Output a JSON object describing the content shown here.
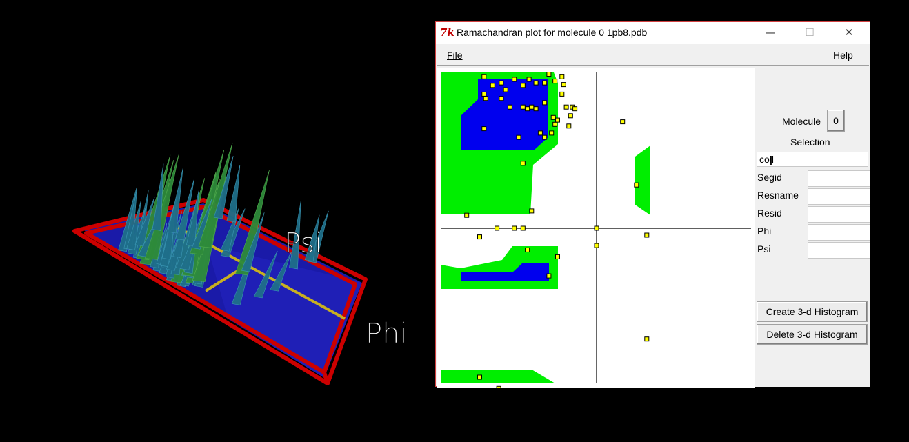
{
  "scene3d": {
    "axis_labels": {
      "psi": "Psi",
      "phi": "Phi"
    }
  },
  "window": {
    "title": "Ramachandran plot for molecule 0 1pb8.pdb",
    "menu": {
      "file": "File",
      "help": "Help"
    },
    "controls": {
      "minimize": "—",
      "maximize": "☐",
      "close": "✕"
    }
  },
  "panel": {
    "molecule_label": "Molecule",
    "molecule_value": "0",
    "selection_label": "Selection",
    "selection_value": "coil",
    "fields": [
      {
        "label": "Segid",
        "value": ""
      },
      {
        "label": "Resname",
        "value": ""
      },
      {
        "label": "Resid",
        "value": ""
      },
      {
        "label": "Phi",
        "value": ""
      },
      {
        "label": "Psi",
        "value": ""
      }
    ],
    "create_button": "Create 3-d Histogram",
    "delete_button": "Delete 3-d Histogram"
  },
  "colors": {
    "favored": "#0000ee",
    "allowed": "#00ee00",
    "point": "#ffff00",
    "plane": "#1a1aa8",
    "frame": "#cc0000",
    "spike": "#1f6f8a",
    "spike_tall": "#2e8b3a"
  },
  "plot_data": {
    "type": "scatter",
    "points": [
      [
        -130,
        175
      ],
      [
        -120,
        165
      ],
      [
        -110,
        168
      ],
      [
        -105,
        160
      ],
      [
        -95,
        172
      ],
      [
        -85,
        165
      ],
      [
        -78,
        172
      ],
      [
        -70,
        168
      ],
      [
        -60,
        168
      ],
      [
        -55,
        178
      ],
      [
        -48,
        170
      ],
      [
        -40,
        175
      ],
      [
        -38,
        166
      ],
      [
        -130,
        155
      ],
      [
        -128,
        150
      ],
      [
        -110,
        150
      ],
      [
        -100,
        140
      ],
      [
        -85,
        140
      ],
      [
        -75,
        140
      ],
      [
        -60,
        145
      ],
      [
        -40,
        155
      ],
      [
        -35,
        140
      ],
      [
        -28,
        140
      ],
      [
        -25,
        138
      ],
      [
        -80,
        138
      ],
      [
        -70,
        138
      ],
      [
        -50,
        128
      ],
      [
        -45,
        125
      ],
      [
        -48,
        120
      ],
      [
        -30,
        130
      ],
      [
        -32,
        118
      ],
      [
        -52,
        110
      ],
      [
        -90,
        105
      ],
      [
        -65,
        110
      ],
      [
        -60,
        105
      ],
      [
        -130,
        115
      ],
      [
        -85,
        75
      ],
      [
        -150,
        15
      ],
      [
        -135,
        -10
      ],
      [
        -115,
        0
      ],
      [
        -95,
        0
      ],
      [
        -85,
        0
      ],
      [
        -75,
        20
      ],
      [
        -80,
        -25
      ],
      [
        -55,
        -55
      ],
      [
        -45,
        -33
      ],
      [
        0,
        0
      ],
      [
        0,
        -20
      ],
      [
        30,
        123
      ],
      [
        46,
        50
      ],
      [
        58,
        -8
      ],
      [
        58,
        -128
      ],
      [
        80,
        -187
      ],
      [
        -135,
        -172
      ],
      [
        -113,
        -185
      ],
      [
        73,
        -187
      ]
    ]
  }
}
